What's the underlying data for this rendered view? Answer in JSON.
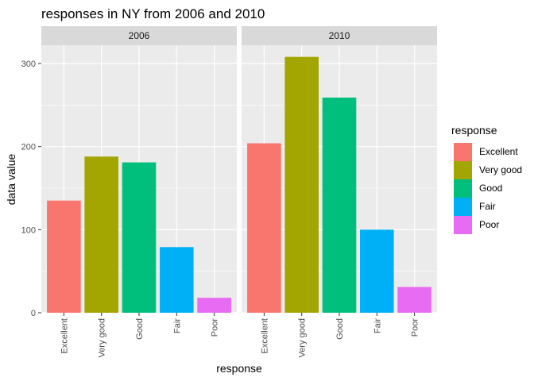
{
  "chart_data": {
    "type": "bar",
    "title": "responses in NY from 2006 and 2010",
    "xlabel": "response",
    "ylabel": "data value",
    "categories": [
      "Excellent",
      "Very good",
      "Good",
      "Fair",
      "Poor"
    ],
    "facets": [
      {
        "name": "2006",
        "values": [
          135,
          188,
          181,
          79,
          18
        ]
      },
      {
        "name": "2010",
        "values": [
          204,
          308,
          259,
          100,
          31
        ]
      }
    ],
    "yticks": [
      0,
      100,
      200,
      300
    ],
    "ylim": [
      0,
      322
    ],
    "colors": {
      "Excellent": "#F8766D",
      "Very good": "#A3A500",
      "Good": "#00BF7D",
      "Fair": "#00B0F6",
      "Poor": "#E76BF3"
    },
    "legend": {
      "title": "response",
      "placement": "right"
    },
    "grid": true,
    "panel_background": "#EBEBEB",
    "strip_background": "#D9D9D9"
  }
}
